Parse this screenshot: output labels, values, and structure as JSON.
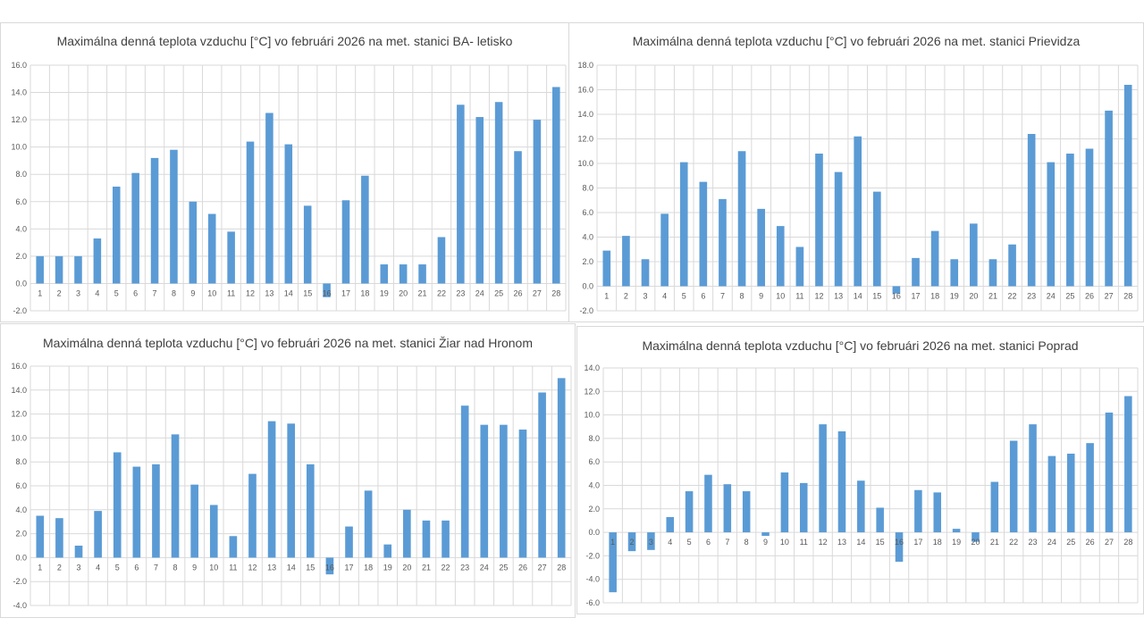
{
  "chart_data": [
    {
      "type": "bar",
      "title": "Maximálna denná teplota vzduchu [°C] vo februári 2026 na met. stanici BA- letisko",
      "xlabel": "",
      "ylabel": "",
      "ylim": [
        -2,
        16
      ],
      "ystep": 2,
      "grid": true,
      "categories": [
        "1",
        "2",
        "3",
        "4",
        "5",
        "6",
        "7",
        "8",
        "9",
        "10",
        "11",
        "12",
        "13",
        "14",
        "15",
        "16",
        "17",
        "18",
        "19",
        "20",
        "21",
        "22",
        "23",
        "24",
        "25",
        "26",
        "27",
        "28"
      ],
      "values": [
        2.0,
        2.0,
        2.0,
        3.3,
        7.1,
        8.1,
        9.2,
        9.8,
        6.0,
        5.1,
        3.8,
        10.4,
        12.5,
        10.2,
        5.7,
        -1.0,
        6.1,
        7.9,
        1.4,
        1.4,
        1.4,
        3.4,
        13.1,
        12.2,
        13.3,
        9.7,
        12.0,
        14.4
      ],
      "yticks": [
        "-2.0",
        "0.0",
        "2.0",
        "4.0",
        "6.0",
        "8.0",
        "10.0",
        "12.0",
        "14.0",
        "16.0"
      ]
    },
    {
      "type": "bar",
      "title": "Maximálna denná teplota vzduchu [°C] vo februári 2026 na met. stanici Prievidza",
      "xlabel": "",
      "ylabel": "",
      "ylim": [
        -2,
        18
      ],
      "ystep": 2,
      "grid": true,
      "categories": [
        "1",
        "2",
        "3",
        "4",
        "5",
        "6",
        "7",
        "8",
        "9",
        "10",
        "11",
        "12",
        "13",
        "14",
        "15",
        "16",
        "17",
        "18",
        "19",
        "20",
        "21",
        "22",
        "23",
        "24",
        "25",
        "26",
        "27",
        "28"
      ],
      "values": [
        2.9,
        4.1,
        2.2,
        5.9,
        10.1,
        8.5,
        7.1,
        11.0,
        6.3,
        4.9,
        3.2,
        10.8,
        9.3,
        12.2,
        7.7,
        -0.6,
        2.3,
        4.5,
        2.2,
        5.1,
        2.2,
        3.4,
        12.4,
        10.1,
        10.8,
        11.2,
        14.3,
        16.4
      ],
      "yticks": [
        "-2.0",
        "0.0",
        "2.0",
        "4.0",
        "6.0",
        "8.0",
        "10.0",
        "12.0",
        "14.0",
        "16.0",
        "18.0"
      ]
    },
    {
      "type": "bar",
      "title": "Maximálna denná teplota vzduchu [°C] vo februári 2026 na met. stanici Žiar nad Hronom",
      "xlabel": "",
      "ylabel": "",
      "ylim": [
        -4,
        16
      ],
      "ystep": 2,
      "grid": true,
      "categories": [
        "1",
        "2",
        "3",
        "4",
        "5",
        "6",
        "7",
        "8",
        "9",
        "10",
        "11",
        "12",
        "13",
        "14",
        "15",
        "16",
        "17",
        "18",
        "19",
        "20",
        "21",
        "22",
        "23",
        "24",
        "25",
        "26",
        "27",
        "28"
      ],
      "values": [
        3.5,
        3.3,
        1.0,
        3.9,
        8.8,
        7.6,
        7.8,
        10.3,
        6.1,
        4.4,
        1.8,
        7.0,
        11.4,
        11.2,
        7.8,
        -1.4,
        2.6,
        5.6,
        1.1,
        4.0,
        3.1,
        3.1,
        12.7,
        11.1,
        11.1,
        10.7,
        13.8,
        15.0
      ],
      "yticks": [
        "-4.0",
        "-2.0",
        "0.0",
        "2.0",
        "4.0",
        "6.0",
        "8.0",
        "10.0",
        "12.0",
        "14.0",
        "16.0"
      ]
    },
    {
      "type": "bar",
      "title": "Maximálna denná teplota vzduchu [°C] vo februári 2026 na met. stanici Poprad",
      "xlabel": "",
      "ylabel": "",
      "ylim": [
        -6,
        14
      ],
      "ystep": 2,
      "grid": true,
      "categories": [
        "1",
        "2",
        "3",
        "4",
        "5",
        "6",
        "7",
        "8",
        "9",
        "10",
        "11",
        "12",
        "13",
        "14",
        "15",
        "16",
        "17",
        "18",
        "19",
        "20",
        "21",
        "22",
        "23",
        "24",
        "25",
        "26",
        "27",
        "28"
      ],
      "values": [
        -5.1,
        -1.6,
        -1.5,
        1.3,
        3.5,
        4.9,
        4.1,
        3.5,
        -0.3,
        5.1,
        4.2,
        9.2,
        8.6,
        4.4,
        2.1,
        -2.5,
        3.6,
        3.4,
        0.3,
        -0.8,
        4.3,
        7.8,
        9.2,
        6.5,
        6.7,
        7.6,
        10.2,
        11.6
      ],
      "yticks": [
        "-6.0",
        "-4.0",
        "-2.0",
        "0.0",
        "2.0",
        "4.0",
        "6.0",
        "8.0",
        "10.0",
        "12.0",
        "14.0"
      ]
    }
  ],
  "colors": {
    "bar": "#5b9bd5",
    "grid": "#d9d9d9",
    "text": "#595959"
  }
}
